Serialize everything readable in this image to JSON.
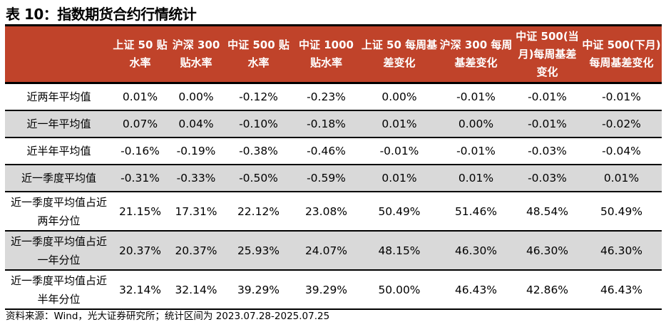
{
  "title": "表 10：指数期货合约行情统计",
  "headers": [
    "",
    "上证 50 贴水率",
    "沪深 300 贴水率",
    "中证 500 贴水率",
    "中证 1000 贴水率",
    "上证 50 每周基差变化",
    "沪深 300 每周基差变化",
    "中证 500(当月)每周基差变化",
    "中证 500(下月)每周基差变化"
  ],
  "rows": [
    {
      "label": "近两年平均值",
      "values": [
        "0.01%",
        "0.00%",
        "-0.12%",
        "-0.23%",
        "0.00%",
        "-0.01%",
        "-0.01%",
        "-0.01%"
      ]
    },
    {
      "label": "近一年平均值",
      "values": [
        "0.07%",
        "0.04%",
        "-0.10%",
        "-0.18%",
        "0.01%",
        "0.00%",
        "-0.01%",
        "-0.02%"
      ]
    },
    {
      "label": "近半年平均值",
      "values": [
        "-0.16%",
        "-0.19%",
        "-0.38%",
        "-0.46%",
        "-0.01%",
        "-0.01%",
        "-0.03%",
        "-0.04%"
      ]
    },
    {
      "label": "近一季度平均值",
      "values": [
        "-0.31%",
        "-0.33%",
        "-0.50%",
        "-0.59%",
        "0.01%",
        "0.01%",
        "-0.03%",
        "0.01%"
      ]
    },
    {
      "label": "近一季度平均值占近两年分位",
      "values": [
        "21.15%",
        "17.31%",
        "22.12%",
        "23.08%",
        "50.49%",
        "51.46%",
        "48.54%",
        "50.49%"
      ]
    },
    {
      "label": "近一季度平均值占近一年分位",
      "values": [
        "20.37%",
        "20.37%",
        "25.93%",
        "24.07%",
        "48.15%",
        "46.30%",
        "46.30%",
        "46.30%"
      ]
    },
    {
      "label": "近一季度平均值占近半年分位",
      "values": [
        "32.14%",
        "32.14%",
        "39.29%",
        "39.29%",
        "50.00%",
        "46.43%",
        "42.86%",
        "46.43%"
      ]
    }
  ],
  "source": "资料来源：Wind，光大证券研究所；统计区间为 2023.07.28-2025.07.25",
  "colors": {
    "header_bg": "#C0432A",
    "alt_row": "#D9D9D9"
  }
}
